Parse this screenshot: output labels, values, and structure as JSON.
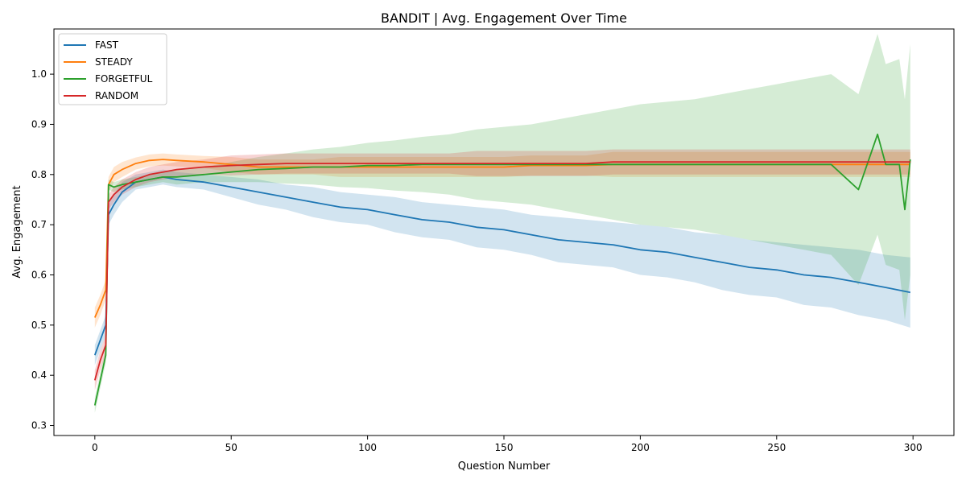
{
  "chart_data": {
    "type": "line",
    "title": "BANDIT | Avg. Engagement Over Time",
    "xlabel": "Question Number",
    "ylabel": "Avg. Engagement",
    "xlim": [
      -15,
      315
    ],
    "ylim": [
      0.28,
      1.09
    ],
    "xticks": [
      0,
      50,
      100,
      150,
      200,
      250,
      300
    ],
    "yticks": [
      0.3,
      0.4,
      0.5,
      0.6,
      0.7,
      0.8,
      0.9,
      1.0
    ],
    "xtick_labels": [
      "0",
      "50",
      "100",
      "150",
      "200",
      "250",
      "300"
    ],
    "ytick_labels": [
      "0.3",
      "0.4",
      "0.5",
      "0.6",
      "0.7",
      "0.8",
      "0.9",
      "1.0"
    ],
    "grid": false,
    "legend_position": "top-left",
    "series": [
      {
        "name": "FAST",
        "color": "#1f77b4",
        "x": [
          0,
          2,
          4,
          5,
          7,
          10,
          15,
          20,
          25,
          30,
          40,
          50,
          60,
          70,
          80,
          90,
          100,
          110,
          120,
          130,
          140,
          150,
          160,
          170,
          180,
          190,
          200,
          210,
          220,
          230,
          240,
          250,
          260,
          270,
          280,
          290,
          299
        ],
        "values": [
          0.44,
          0.47,
          0.5,
          0.72,
          0.74,
          0.765,
          0.785,
          0.79,
          0.795,
          0.79,
          0.785,
          0.775,
          0.765,
          0.755,
          0.745,
          0.735,
          0.73,
          0.72,
          0.71,
          0.705,
          0.695,
          0.69,
          0.68,
          0.67,
          0.665,
          0.66,
          0.65,
          0.645,
          0.635,
          0.625,
          0.615,
          0.61,
          0.6,
          0.595,
          0.585,
          0.575,
          0.565
        ],
        "band_halfwidth": [
          0.02,
          0.02,
          0.02,
          0.02,
          0.02,
          0.02,
          0.015,
          0.015,
          0.015,
          0.015,
          0.015,
          0.02,
          0.025,
          0.025,
          0.03,
          0.03,
          0.03,
          0.035,
          0.035,
          0.035,
          0.04,
          0.04,
          0.04,
          0.045,
          0.045,
          0.045,
          0.05,
          0.05,
          0.05,
          0.055,
          0.055,
          0.055,
          0.06,
          0.06,
          0.065,
          0.065,
          0.07
        ]
      },
      {
        "name": "STEADY",
        "color": "#ff7f0e",
        "x": [
          0,
          2,
          4,
          5,
          7,
          10,
          15,
          20,
          25,
          30,
          40,
          50,
          60,
          70,
          80,
          90,
          100,
          110,
          120,
          130,
          140,
          150,
          160,
          170,
          180,
          190,
          200,
          210,
          220,
          230,
          240,
          250,
          260,
          270,
          280,
          290,
          299
        ],
        "values": [
          0.515,
          0.54,
          0.57,
          0.78,
          0.8,
          0.81,
          0.822,
          0.828,
          0.83,
          0.828,
          0.825,
          0.82,
          0.815,
          0.815,
          0.815,
          0.815,
          0.815,
          0.815,
          0.815,
          0.815,
          0.815,
          0.815,
          0.818,
          0.818,
          0.818,
          0.82,
          0.82,
          0.82,
          0.82,
          0.82,
          0.82,
          0.82,
          0.82,
          0.82,
          0.82,
          0.82,
          0.82
        ],
        "band_halfwidth": [
          0.02,
          0.02,
          0.02,
          0.015,
          0.015,
          0.015,
          0.012,
          0.012,
          0.012,
          0.012,
          0.012,
          0.015,
          0.015,
          0.015,
          0.015,
          0.02,
          0.02,
          0.02,
          0.02,
          0.02,
          0.02,
          0.02,
          0.02,
          0.02,
          0.02,
          0.025,
          0.025,
          0.025,
          0.025,
          0.025,
          0.025,
          0.025,
          0.025,
          0.025,
          0.025,
          0.025,
          0.025
        ]
      },
      {
        "name": "FORGETFUL",
        "color": "#2ca02c",
        "x": [
          0,
          2,
          4,
          5,
          7,
          10,
          15,
          20,
          25,
          30,
          40,
          50,
          60,
          70,
          80,
          90,
          100,
          110,
          120,
          130,
          140,
          150,
          160,
          170,
          180,
          190,
          200,
          210,
          220,
          230,
          240,
          250,
          260,
          270,
          280,
          287,
          290,
          295,
          297,
          299
        ],
        "values": [
          0.34,
          0.39,
          0.44,
          0.78,
          0.775,
          0.78,
          0.785,
          0.79,
          0.795,
          0.795,
          0.8,
          0.805,
          0.81,
          0.812,
          0.815,
          0.815,
          0.818,
          0.818,
          0.82,
          0.82,
          0.82,
          0.82,
          0.82,
          0.82,
          0.82,
          0.82,
          0.82,
          0.82,
          0.82,
          0.82,
          0.82,
          0.82,
          0.82,
          0.82,
          0.77,
          0.88,
          0.82,
          0.82,
          0.73,
          0.83
        ],
        "band_halfwidth": [
          0.015,
          0.015,
          0.015,
          0.01,
          0.01,
          0.01,
          0.01,
          0.01,
          0.01,
          0.015,
          0.015,
          0.02,
          0.025,
          0.03,
          0.035,
          0.04,
          0.045,
          0.05,
          0.055,
          0.06,
          0.07,
          0.075,
          0.08,
          0.09,
          0.1,
          0.11,
          0.12,
          0.125,
          0.13,
          0.14,
          0.15,
          0.16,
          0.17,
          0.18,
          0.19,
          0.2,
          0.2,
          0.21,
          0.22,
          0.23
        ]
      },
      {
        "name": "RANDOM",
        "color": "#d62728",
        "x": [
          0,
          2,
          4,
          5,
          7,
          10,
          15,
          20,
          25,
          30,
          40,
          50,
          60,
          70,
          80,
          90,
          100,
          110,
          120,
          130,
          140,
          150,
          160,
          170,
          180,
          190,
          200,
          210,
          220,
          230,
          240,
          250,
          260,
          270,
          280,
          290,
          299
        ],
        "values": [
          0.39,
          0.43,
          0.46,
          0.745,
          0.76,
          0.775,
          0.79,
          0.8,
          0.805,
          0.81,
          0.815,
          0.818,
          0.82,
          0.822,
          0.822,
          0.822,
          0.822,
          0.822,
          0.822,
          0.822,
          0.822,
          0.822,
          0.822,
          0.822,
          0.822,
          0.825,
          0.825,
          0.825,
          0.825,
          0.825,
          0.825,
          0.825,
          0.825,
          0.825,
          0.825,
          0.825,
          0.825
        ],
        "band_halfwidth": [
          0.02,
          0.02,
          0.02,
          0.015,
          0.015,
          0.015,
          0.015,
          0.015,
          0.015,
          0.015,
          0.015,
          0.02,
          0.02,
          0.02,
          0.02,
          0.02,
          0.02,
          0.02,
          0.02,
          0.02,
          0.025,
          0.025,
          0.025,
          0.025,
          0.025,
          0.025,
          0.025,
          0.025,
          0.025,
          0.025,
          0.025,
          0.025,
          0.025,
          0.025,
          0.025,
          0.025,
          0.025
        ]
      }
    ]
  }
}
